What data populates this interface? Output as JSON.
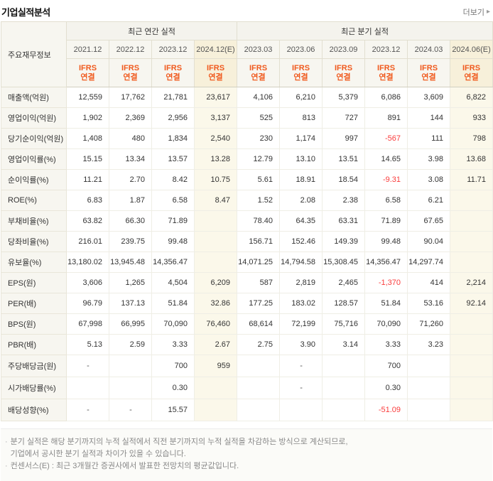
{
  "page": {
    "title": "기업실적분석",
    "more_link": "더보기"
  },
  "colors": {
    "accent_orange": "#f05a1e",
    "negative_red": "#fa3c3c"
  },
  "table": {
    "corner_header": "주요재무정보",
    "group_headers": [
      {
        "label": "최근 연간 실적",
        "span": 4
      },
      {
        "label": "최근 분기 실적",
        "span": 6
      }
    ],
    "period_headers": [
      "2021.12",
      "2022.12",
      "2023.12",
      "2024.12(E)",
      "2023.03",
      "2023.06",
      "2023.09",
      "2023.12",
      "2024.03",
      "2024.06(E)"
    ],
    "estimate_columns": [
      3,
      9
    ],
    "standard_lines": [
      "IFRS",
      "연결"
    ],
    "rows": [
      {
        "label": "매출액(억원)",
        "values": [
          "12,559",
          "17,762",
          "21,781",
          "23,617",
          "4,106",
          "6,210",
          "5,379",
          "6,086",
          "3,609",
          "6,822"
        ]
      },
      {
        "label": "영업이익(억원)",
        "values": [
          "1,902",
          "2,369",
          "2,956",
          "3,137",
          "525",
          "813",
          "727",
          "891",
          "144",
          "933"
        ]
      },
      {
        "label": "당기순이익(억원)",
        "values": [
          "1,408",
          "480",
          "1,834",
          "2,540",
          "230",
          "1,174",
          "997",
          "-567",
          "111",
          "798"
        ]
      },
      {
        "label": "영업이익률(%)",
        "values": [
          "15.15",
          "13.34",
          "13.57",
          "13.28",
          "12.79",
          "13.10",
          "13.51",
          "14.65",
          "3.98",
          "13.68"
        ]
      },
      {
        "label": "순이익률(%)",
        "values": [
          "11.21",
          "2.70",
          "8.42",
          "10.75",
          "5.61",
          "18.91",
          "18.54",
          "-9.31",
          "3.08",
          "11.71"
        ]
      },
      {
        "label": "ROE(%)",
        "values": [
          "6.83",
          "1.87",
          "6.58",
          "8.47",
          "1.52",
          "2.08",
          "2.38",
          "6.58",
          "6.21",
          ""
        ]
      },
      {
        "label": "부채비율(%)",
        "values": [
          "63.82",
          "66.30",
          "71.89",
          "",
          "78.40",
          "64.35",
          "63.31",
          "71.89",
          "67.65",
          ""
        ]
      },
      {
        "label": "당좌비율(%)",
        "values": [
          "216.01",
          "239.75",
          "99.48",
          "",
          "156.71",
          "152.46",
          "149.39",
          "99.48",
          "90.04",
          ""
        ]
      },
      {
        "label": "유보율(%)",
        "values": [
          "13,180.02",
          "13,945.48",
          "14,356.47",
          "",
          "14,071.25",
          "14,794.58",
          "15,308.45",
          "14,356.47",
          "14,297.74",
          ""
        ]
      },
      {
        "label": "EPS(원)",
        "values": [
          "3,606",
          "1,265",
          "4,504",
          "6,209",
          "587",
          "2,819",
          "2,465",
          "-1,370",
          "414",
          "2,214"
        ]
      },
      {
        "label": "PER(배)",
        "values": [
          "96.79",
          "137.13",
          "51.84",
          "32.86",
          "177.25",
          "183.02",
          "128.57",
          "51.84",
          "53.16",
          "92.14"
        ]
      },
      {
        "label": "BPS(원)",
        "values": [
          "67,998",
          "66,995",
          "70,090",
          "76,460",
          "68,614",
          "72,199",
          "75,716",
          "70,090",
          "71,260",
          ""
        ]
      },
      {
        "label": "PBR(배)",
        "values": [
          "5.13",
          "2.59",
          "3.33",
          "2.67",
          "2.75",
          "3.90",
          "3.14",
          "3.33",
          "3.23",
          ""
        ]
      },
      {
        "label": "주당배당금(원)",
        "values": [
          "-",
          "",
          "700",
          "959",
          "",
          "-",
          "",
          "700",
          "",
          ""
        ]
      },
      {
        "label": "시가배당률(%)",
        "values": [
          "",
          "",
          "0.30",
          "",
          "",
          "-",
          "",
          "0.30",
          "",
          ""
        ]
      },
      {
        "label": "배당성향(%)",
        "values": [
          "-",
          "-",
          "15.57",
          "",
          "",
          "",
          "",
          "-51.09",
          "",
          ""
        ]
      }
    ]
  },
  "footnotes": [
    {
      "lines": [
        "분기 실적은 해당 분기까지의 누적 실적에서 직전 분기까지의 누적 실적을 차감하는 방식으로 계산되므로,",
        "기업에서 공시한 분기 실적과 차이가 있을 수 있습니다."
      ]
    },
    {
      "lines": [
        "컨센서스(E) : 최근 3개월간 증권사에서 발표한 전망치의 평균값입니다."
      ]
    }
  ]
}
